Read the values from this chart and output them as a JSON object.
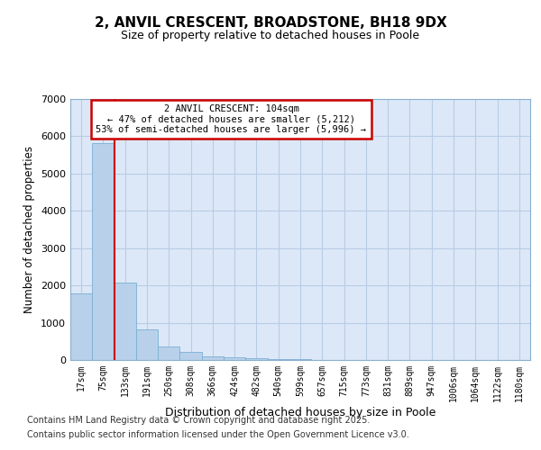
{
  "title1": "2, ANVIL CRESCENT, BROADSTONE, BH18 9DX",
  "title2": "Size of property relative to detached houses in Poole",
  "xlabel": "Distribution of detached houses by size in Poole",
  "ylabel": "Number of detached properties",
  "categories": [
    "17sqm",
    "75sqm",
    "133sqm",
    "191sqm",
    "250sqm",
    "308sqm",
    "366sqm",
    "424sqm",
    "482sqm",
    "540sqm",
    "599sqm",
    "657sqm",
    "715sqm",
    "773sqm",
    "831sqm",
    "889sqm",
    "947sqm",
    "1006sqm",
    "1064sqm",
    "1122sqm",
    "1180sqm"
  ],
  "bar_values": [
    1780,
    5820,
    2080,
    820,
    360,
    220,
    100,
    80,
    50,
    30,
    15,
    10,
    8,
    5,
    3,
    2,
    2,
    2,
    1,
    1,
    1
  ],
  "bar_color": "#b8d0ea",
  "bar_edge_color": "#7aafd4",
  "background_color": "#dce8f8",
  "grid_color": "#b8cce4",
  "red_line_x": 1.5,
  "annotation_title": "2 ANVIL CRESCENT: 104sqm",
  "annotation_line1": "← 47% of detached houses are smaller (5,212)",
  "annotation_line2": "53% of semi-detached houses are larger (5,996) →",
  "annotation_box_color": "#ffffff",
  "annotation_border_color": "#cc0000",
  "red_line_color": "#cc0000",
  "ylim": [
    0,
    7000
  ],
  "yticks": [
    0,
    1000,
    2000,
    3000,
    4000,
    5000,
    6000,
    7000
  ],
  "footer1": "Contains HM Land Registry data © Crown copyright and database right 2025.",
  "footer2": "Contains public sector information licensed under the Open Government Licence v3.0.",
  "fig_bg": "#ffffff"
}
